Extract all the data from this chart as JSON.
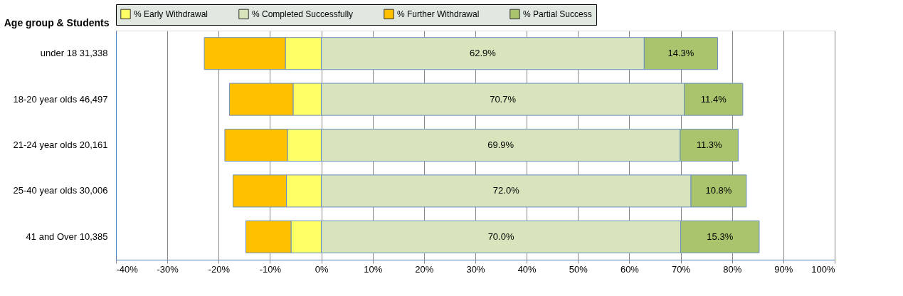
{
  "chart_data": {
    "type": "bar",
    "orientation": "horizontal",
    "stacked": true,
    "ylabel": "Age group & Students",
    "categories": [
      "under 18   31,338",
      "18-20 year olds   46,497",
      "21-24 year olds   20,161",
      "25-40 year olds   30,006",
      "41 and Over   10,385"
    ],
    "series": [
      {
        "name": "% Early Withdrawal",
        "color": "#ffff66",
        "values": [
          -7.0,
          -5.5,
          -6.6,
          -6.8,
          -5.9
        ]
      },
      {
        "name": "% Completed Successfully",
        "color": "#d8e4bc",
        "values": [
          62.9,
          70.7,
          69.9,
          72.0,
          70.0
        ],
        "value_labels": [
          "62.9%",
          "70.7%",
          "69.9%",
          "72.0%",
          "70.0%"
        ]
      },
      {
        "name": "% Further Withdrawal",
        "color": "#ffc000",
        "values": [
          -15.8,
          -12.4,
          -12.2,
          -10.4,
          -8.8
        ]
      },
      {
        "name": "% Partial Success",
        "color": "#a9c46c",
        "values": [
          14.3,
          11.4,
          11.3,
          10.8,
          15.3
        ],
        "value_labels": [
          "14.3%",
          "11.4%",
          "11.3%",
          "10.8%",
          "15.3%"
        ]
      }
    ],
    "xlim": [
      -40,
      100
    ],
    "xticks": [
      {
        "value": -40,
        "label": "-40%"
      },
      {
        "value": -30,
        "label": "-30%"
      },
      {
        "value": -20,
        "label": "-20%"
      },
      {
        "value": -10,
        "label": "-10%"
      },
      {
        "value": 0,
        "label": "0%"
      },
      {
        "value": 10,
        "label": "10%"
      },
      {
        "value": 20,
        "label": "20%"
      },
      {
        "value": 30,
        "label": "30%"
      },
      {
        "value": 40,
        "label": "40%"
      },
      {
        "value": 50,
        "label": "50%"
      },
      {
        "value": 60,
        "label": "60%"
      },
      {
        "value": 70,
        "label": "70%"
      },
      {
        "value": 80,
        "label": "80%"
      },
      {
        "value": 90,
        "label": "90%"
      },
      {
        "value": 100,
        "label": "100%"
      }
    ],
    "grid": "x",
    "legend": "top"
  }
}
